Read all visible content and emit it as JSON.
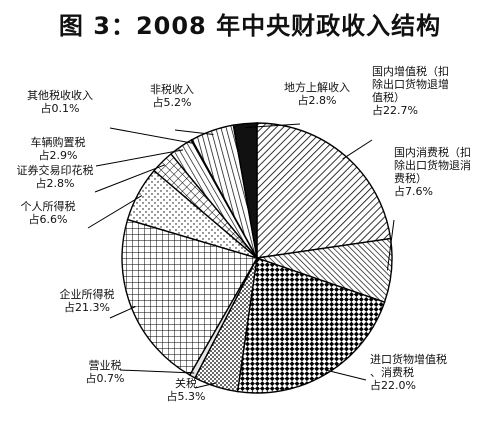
{
  "chart_data": {
    "type": "pie",
    "title": "图 3：2008 年中央财政收入结构",
    "slices": [
      {
        "name": "国内增值税（扣除出口货物退增值税）",
        "label_lines": [
          "国内增值税（扣",
          "除出口货物退增",
          "值税）",
          "占22.7%"
        ],
        "value": 22.7,
        "pattern": "hatch-diagonal"
      },
      {
        "name": "国内消费税（扣除出口货物退消费税）",
        "label_lines": [
          "国内消费税（扣",
          "除出口货物退消",
          "费税）",
          "占7.6%"
        ],
        "value": 7.6,
        "pattern": "hatch-diagonal-fine"
      },
      {
        "name": "进口货物增值税、消费税",
        "label_lines": [
          "进口货物增值税",
          "、消费税",
          "占22.0%"
        ],
        "value": 22.0,
        "pattern": "diamond-check"
      },
      {
        "name": "关税",
        "label_lines": [
          "关税",
          "占5.3%"
        ],
        "value": 5.3,
        "pattern": "dots"
      },
      {
        "name": "营业税",
        "label_lines": [
          "营业税",
          "占0.7%"
        ],
        "value": 0.7,
        "pattern": "light-gray"
      },
      {
        "name": "企业所得税",
        "label_lines": [
          "企业所得税",
          "占21.3%"
        ],
        "value": 21.3,
        "pattern": "grid"
      },
      {
        "name": "个人所得税",
        "label_lines": [
          "个人所得税",
          "占6.6%"
        ],
        "value": 6.6,
        "pattern": "sparse-dots"
      },
      {
        "name": "证券交易印花税",
        "label_lines": [
          "证券交易印花税",
          "占2.8%"
        ],
        "value": 2.8,
        "pattern": "cross-hatch"
      },
      {
        "name": "车辆购置税",
        "label_lines": [
          "车辆购置税",
          "占2.9%"
        ],
        "value": 2.9,
        "pattern": "hatch-back"
      },
      {
        "name": "其他税收收入",
        "label_lines": [
          "其他税收收入",
          "占0.1%"
        ],
        "value": 0.1,
        "pattern": "blank"
      },
      {
        "name": "非税收入",
        "label_lines": [
          "非税收入",
          "占5.2%"
        ],
        "value": 5.2,
        "pattern": "vertical-lines"
      },
      {
        "name": "地方上解收入",
        "label_lines": [
          "地方上解收入",
          "占2.8%"
        ],
        "value": 2.8,
        "pattern": "dark"
      }
    ],
    "start_direction": "12 o'clock",
    "direction": "clockwise",
    "legend": "none (labels with leader lines)"
  }
}
